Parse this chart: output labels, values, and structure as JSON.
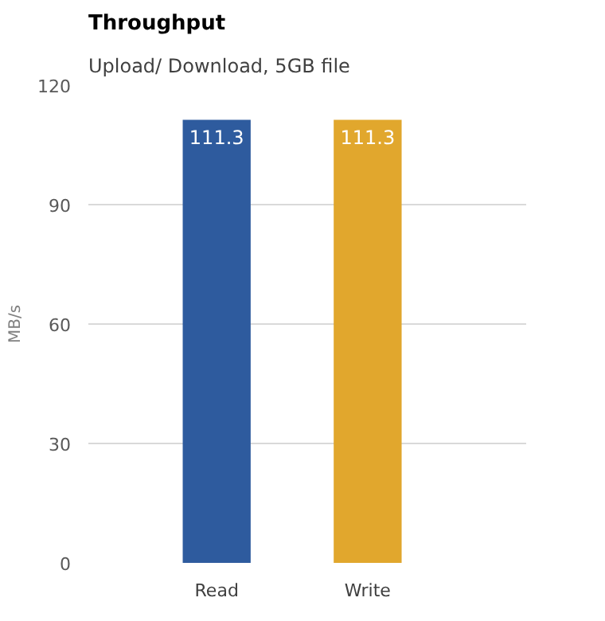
{
  "chart_data": {
    "type": "bar",
    "title": "Throughput",
    "subtitle": "Upload/ Download, 5GB file",
    "ylabel": "MB/s",
    "categories": [
      "Read",
      "Write"
    ],
    "values": [
      111.3,
      111.3
    ],
    "colors": [
      "#2e5b9e",
      "#e1a72d"
    ],
    "ylim": [
      0,
      120
    ],
    "yticks": [
      0,
      30,
      60,
      90,
      120
    ],
    "grid": "y",
    "data_labels": true
  }
}
